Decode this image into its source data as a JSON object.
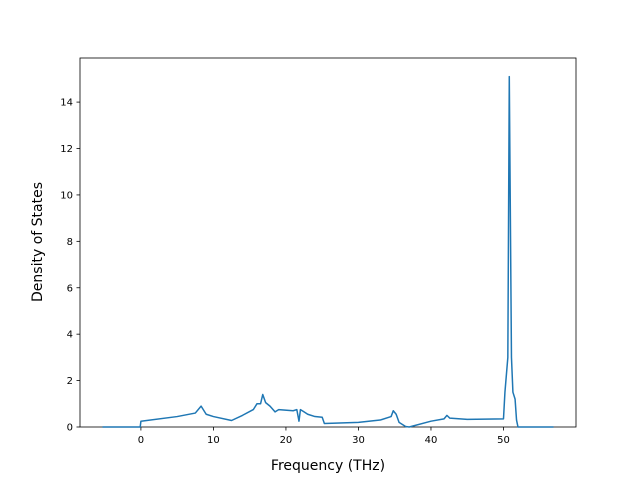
{
  "chart_data": {
    "type": "line",
    "xlabel": "Frequency (THz)",
    "ylabel": "Density of States",
    "x": [
      -5.3,
      -0.1,
      0,
      5,
      7.5,
      8.3,
      9,
      10,
      12.5,
      14,
      15.5,
      16,
      16.5,
      16.8,
      17.2,
      17.8,
      18.5,
      19,
      21,
      21.5,
      21.8,
      22,
      22.5,
      23,
      24,
      25,
      25.3,
      30,
      33,
      34.5,
      34.8,
      35.2,
      35.6,
      36.5,
      37,
      40,
      41.8,
      42.2,
      42.6,
      45,
      50,
      50.2,
      50.6,
      50.8,
      51.1,
      51.3,
      51.6,
      51.8,
      52,
      56.9
    ],
    "series": [
      {
        "name": "DOS",
        "color": "#1f77b4",
        "values": [
          0,
          0,
          0.25,
          0.45,
          0.6,
          0.9,
          0.55,
          0.45,
          0.28,
          0.5,
          0.75,
          1.0,
          1.0,
          1.4,
          1.05,
          0.9,
          0.65,
          0.75,
          0.7,
          0.75,
          0.25,
          0.75,
          0.65,
          0.55,
          0.45,
          0.42,
          0.15,
          0.2,
          0.3,
          0.45,
          0.7,
          0.55,
          0.2,
          0.02,
          0,
          0.25,
          0.35,
          0.5,
          0.38,
          0.33,
          0.35,
          1.5,
          3.0,
          15.1,
          3.0,
          1.5,
          1.2,
          0.3,
          0,
          0
        ]
      }
    ],
    "xlim": [
      -8.4,
      60.0
    ],
    "ylim": [
      0,
      15.9
    ],
    "xticks": [
      0,
      10,
      20,
      30,
      40,
      50
    ],
    "yticks": [
      0,
      2,
      4,
      6,
      8,
      10,
      12,
      14
    ]
  }
}
